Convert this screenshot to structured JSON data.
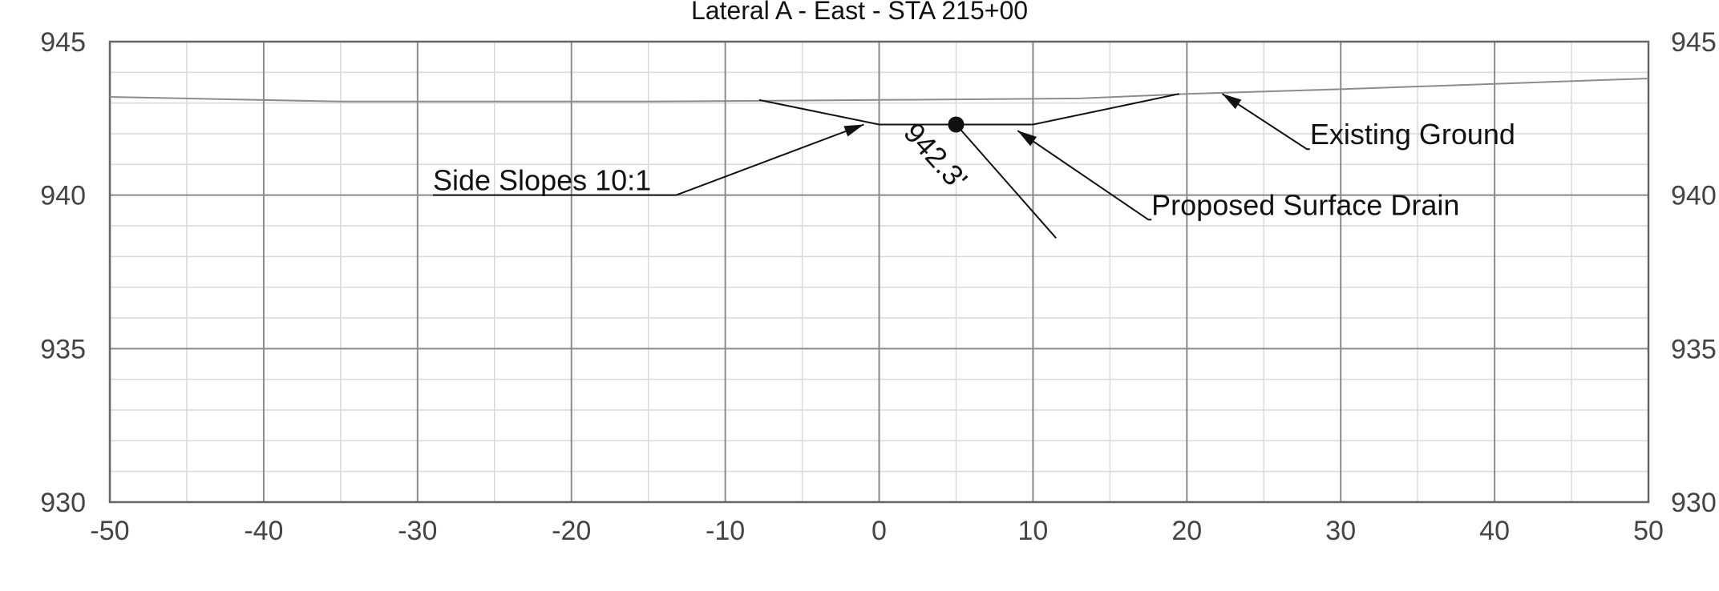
{
  "chart_data": {
    "type": "line",
    "title": "Lateral A - East - STA 215+00",
    "xlim": [
      -50,
      50
    ],
    "ylim": [
      930,
      945
    ],
    "x_major_ticks": [
      -50,
      -40,
      -30,
      -20,
      -10,
      0,
      10,
      20,
      30,
      40,
      50
    ],
    "x_minor_step": 5,
    "y_major_ticks": [
      930,
      935,
      940,
      945
    ],
    "y_minor_step": 1,
    "y_axis_labels_both_sides": true,
    "grid": true,
    "series": [
      {
        "points": [
          [
            -50,
            943.2
          ],
          [
            -35,
            943.05
          ],
          [
            -15,
            943.05
          ],
          [
            0,
            943.1
          ],
          [
            13,
            943.15
          ],
          [
            20,
            943.3
          ],
          [
            30,
            943.45
          ],
          [
            50,
            943.8
          ]
        ],
        "color": "#8c8c8c"
      },
      {
        "points": [
          [
            -7.8,
            943.1
          ],
          [
            0,
            942.3
          ],
          [
            10,
            942.3
          ],
          [
            19.5,
            943.3
          ]
        ],
        "color": "#111111"
      }
    ],
    "annotations": [
      {
        "text": "Existing Ground",
        "text_anchor": [
          28,
          941.5
        ],
        "leader": [
          [
            28,
            941.5
          ],
          [
            27.8,
            941.5
          ],
          [
            22.3,
            943.3
          ]
        ]
      },
      {
        "text": "Proposed Surface Drain",
        "text_anchor": [
          17.7,
          939.2
        ],
        "leader": [
          [
            17.7,
            939.2
          ],
          [
            17.5,
            939.2
          ],
          [
            9,
            942.1
          ]
        ]
      },
      {
        "text": "Side Slopes 10:1",
        "text_anchor": [
          -29,
          940
        ],
        "underline_to": [
          -13.2,
          940
        ],
        "leader": [
          [
            -13.2,
            940
          ],
          [
            -1,
            942.3
          ]
        ]
      },
      {
        "text": "942.3'",
        "point": [
          5,
          942.3
        ],
        "rotation_deg": 48,
        "leader": [
          [
            5,
            942.3
          ],
          [
            11.5,
            938.6
          ]
        ],
        "text_offset": [
          1.5,
          942.0
        ]
      }
    ],
    "colors": {
      "grid_major": "#8a8a8a",
      "grid_minor": "#d9d9d9",
      "text": "#444444"
    }
  }
}
